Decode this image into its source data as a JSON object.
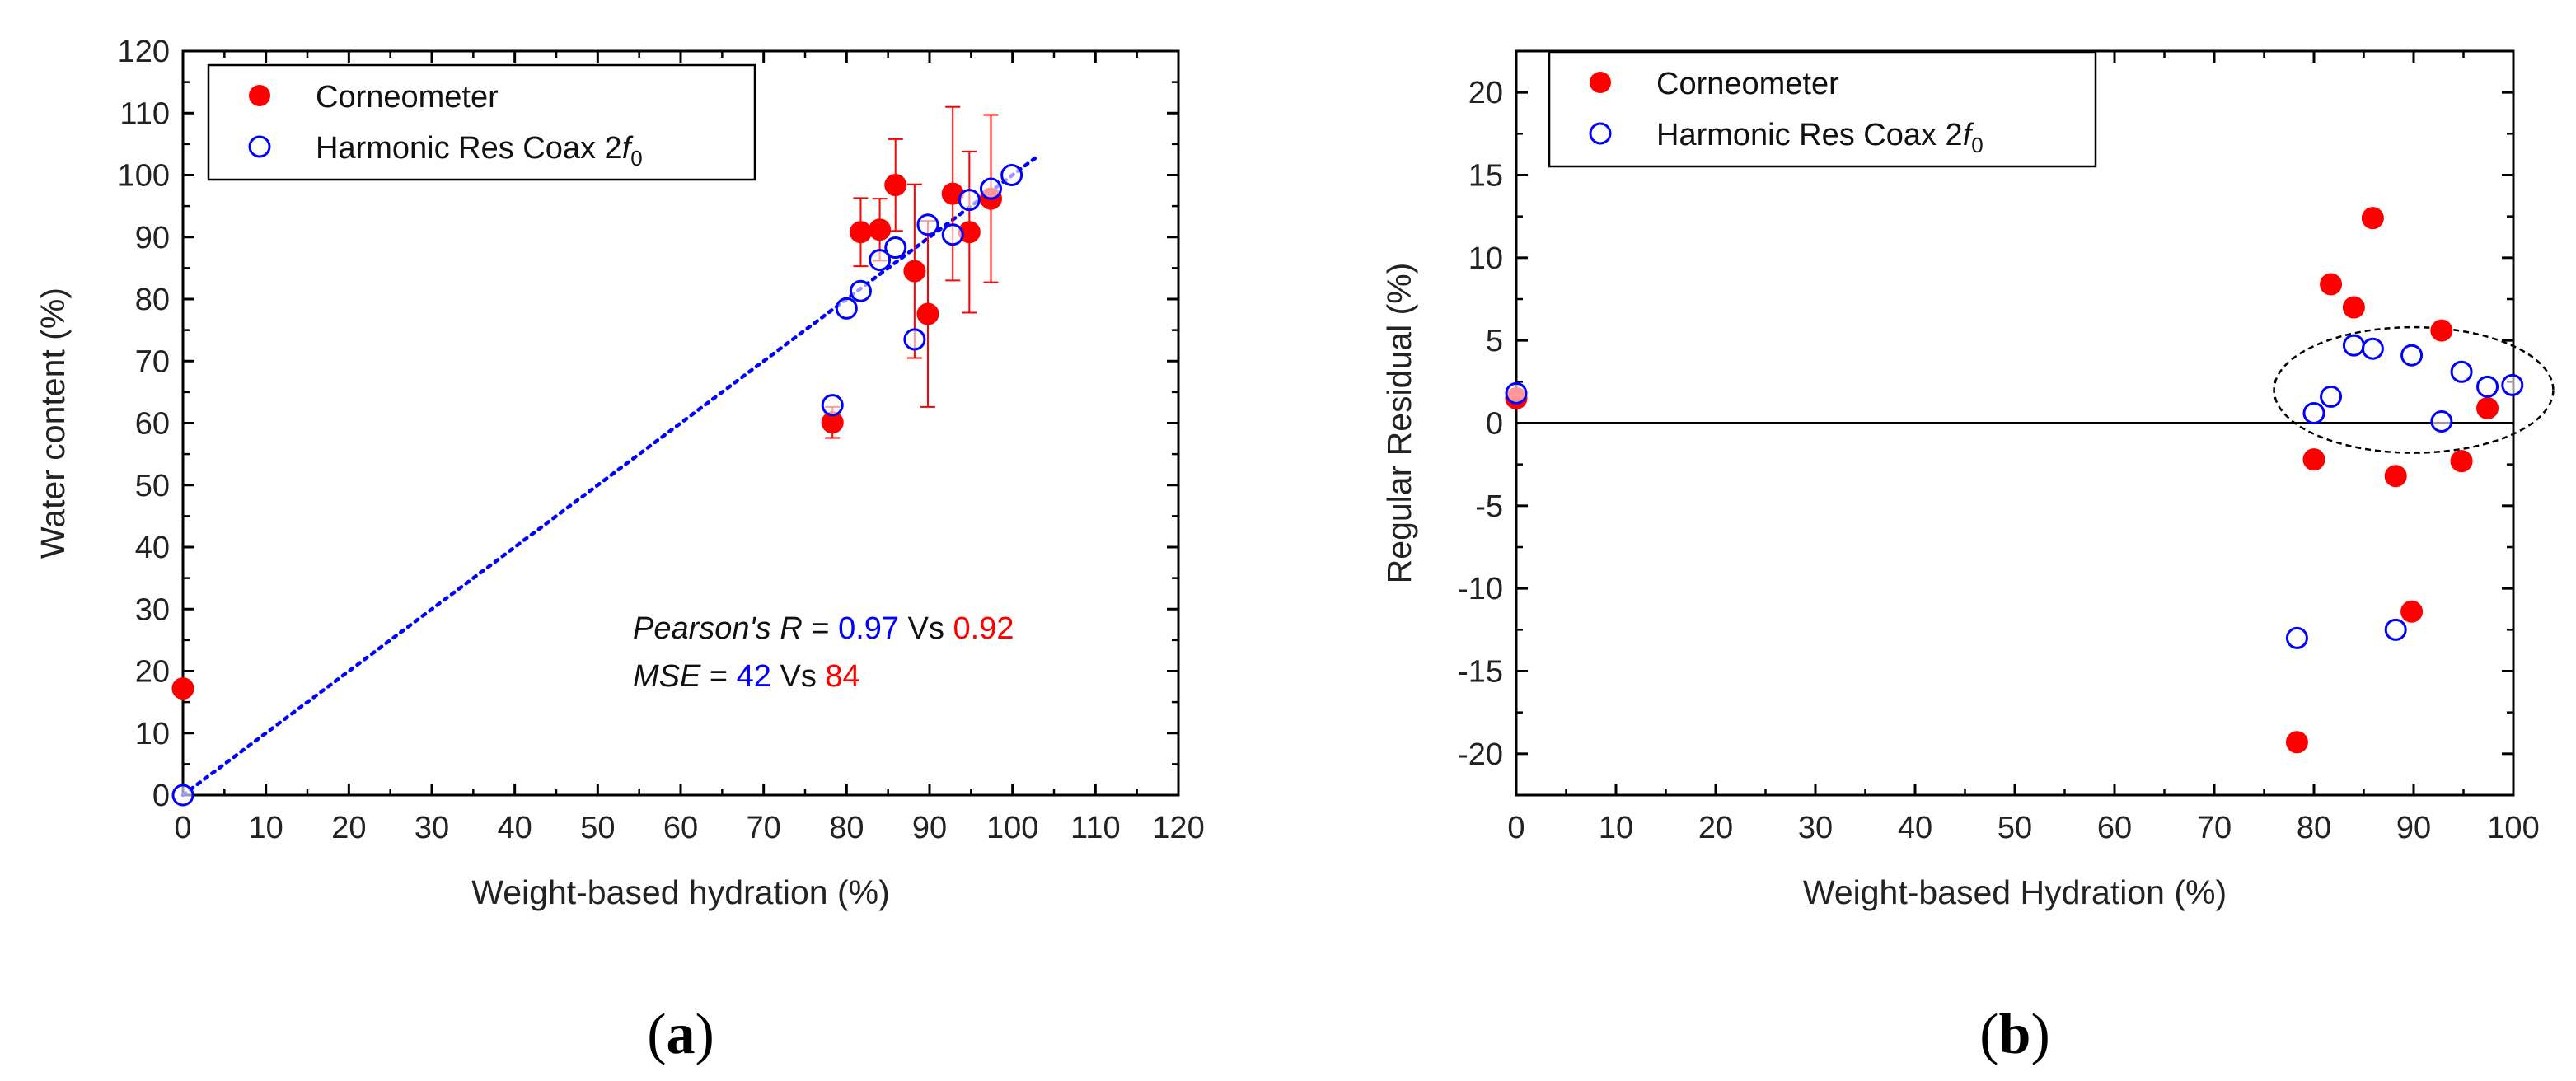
{
  "chart_data": [
    {
      "type": "scatter",
      "panel_label": {
        "open": "(",
        "letter": "a",
        "close": ")"
      },
      "xlabel": "Weight-based hydration (%)",
      "ylabel": "Water content (%)",
      "xlim": [
        0,
        120
      ],
      "ylim": [
        0,
        120
      ],
      "xticks": [
        "0",
        "10",
        "20",
        "30",
        "40",
        "50",
        "60",
        "70",
        "80",
        "90",
        "100",
        "110",
        "120"
      ],
      "yticks": [
        "0",
        "10",
        "20",
        "30",
        "40",
        "50",
        "60",
        "70",
        "80",
        "90",
        "100",
        "110",
        "120"
      ],
      "legend": {
        "position": "top-left",
        "entries": [
          {
            "name": "Corneometer",
            "marker": "filled-circle",
            "color": "#ff0000"
          },
          {
            "name": "Harmonic Res Coax 2",
            "italic_suffix": "f",
            "subscript": "0",
            "marker": "open-circle",
            "color": "#0000ff"
          }
        ]
      },
      "series": [
        {
          "name": "Corneometer",
          "color": "#ff0000",
          "points": [
            {
              "x": 0,
              "y": 17.2,
              "err": 0
            },
            {
              "x": 78.3,
              "y": 60.1,
              "err": 2.5
            },
            {
              "x": 81.7,
              "y": 90.8,
              "err": 5.5
            },
            {
              "x": 84.0,
              "y": 91.2,
              "err": 5.0
            },
            {
              "x": 85.9,
              "y": 98.4,
              "err": 7.4
            },
            {
              "x": 88.2,
              "y": 84.5,
              "err": 14.0
            },
            {
              "x": 89.8,
              "y": 77.6,
              "err": 15.0
            },
            {
              "x": 92.8,
              "y": 97.0,
              "err": 14.0
            },
            {
              "x": 94.8,
              "y": 90.8,
              "err": 13.0
            },
            {
              "x": 97.4,
              "y": 96.2,
              "err": 13.5
            }
          ]
        },
        {
          "name": "Harmonic Res Coax 2f0",
          "color": "#0000ff",
          "points": [
            {
              "x": 0,
              "y": 0
            },
            {
              "x": 78.3,
              "y": 62.9
            },
            {
              "x": 80.0,
              "y": 78.5
            },
            {
              "x": 81.7,
              "y": 81.3
            },
            {
              "x": 84.0,
              "y": 86.3
            },
            {
              "x": 85.9,
              "y": 88.3
            },
            {
              "x": 88.2,
              "y": 73.5
            },
            {
              "x": 89.8,
              "y": 92.0
            },
            {
              "x": 92.8,
              "y": 90.4
            },
            {
              "x": 94.8,
              "y": 96.0
            },
            {
              "x": 97.4,
              "y": 97.8
            },
            {
              "x": 99.9,
              "y": 100.0
            }
          ]
        }
      ],
      "fit_line": {
        "style": "dotted",
        "color": "#0000ff",
        "x": [
          0,
          103
        ],
        "y": [
          0,
          103
        ]
      },
      "annotations": [
        {
          "pre_italic": "Pearson's R",
          "eq": " = ",
          "val1": "0.97",
          "vs": " Vs ",
          "val2": "0.92"
        },
        {
          "pre_italic": "MSE",
          "eq": " = ",
          "val1": "42",
          "vs": " Vs ",
          "val2": "84"
        }
      ]
    },
    {
      "type": "scatter",
      "panel_label": {
        "open": "(",
        "letter": "b",
        "close": ")"
      },
      "xlabel": "Weight-based Hydration (%)",
      "ylabel": "Regular Residual (%)",
      "xlim": [
        0,
        100
      ],
      "ylim": [
        -22.5,
        22.5
      ],
      "xticks": [
        "0",
        "10",
        "20",
        "30",
        "40",
        "50",
        "60",
        "70",
        "80",
        "90",
        "100"
      ],
      "yticks": [
        "-20",
        "-15",
        "-10",
        "-5",
        "0",
        "5",
        "10",
        "15",
        "20"
      ],
      "legend": {
        "position": "top-left",
        "entries": [
          {
            "name": "Corneometer",
            "marker": "filled-circle",
            "color": "#ff0000"
          },
          {
            "name": "Harmonic Res Coax 2",
            "italic_suffix": "f",
            "subscript": "0",
            "marker": "open-circle",
            "color": "#0000ff"
          }
        ]
      },
      "zero_line": true,
      "ellipse_annotation": {
        "style": "dashed",
        "cx": 90,
        "cy": 2.0,
        "rx": 14,
        "ry": 3.8
      },
      "series": [
        {
          "name": "Corneometer",
          "color": "#ff0000",
          "points": [
            {
              "x": 0,
              "y": 1.5
            },
            {
              "x": 78.3,
              "y": -19.3
            },
            {
              "x": 80.0,
              "y": -2.2
            },
            {
              "x": 81.7,
              "y": 8.4
            },
            {
              "x": 84.0,
              "y": 7.0
            },
            {
              "x": 85.9,
              "y": 12.4
            },
            {
              "x": 88.2,
              "y": -3.2
            },
            {
              "x": 89.8,
              "y": -11.4
            },
            {
              "x": 92.8,
              "y": 5.6
            },
            {
              "x": 94.8,
              "y": -2.3
            },
            {
              "x": 97.4,
              "y": 0.9
            }
          ]
        },
        {
          "name": "Harmonic Res Coax 2f0",
          "color": "#0000ff",
          "points": [
            {
              "x": 0,
              "y": 1.8
            },
            {
              "x": 78.3,
              "y": -13.0
            },
            {
              "x": 80.0,
              "y": 0.6
            },
            {
              "x": 81.7,
              "y": 1.6
            },
            {
              "x": 84.0,
              "y": 4.7
            },
            {
              "x": 85.9,
              "y": 4.5
            },
            {
              "x": 88.2,
              "y": -12.5
            },
            {
              "x": 89.8,
              "y": 4.1
            },
            {
              "x": 92.8,
              "y": 0.1
            },
            {
              "x": 94.8,
              "y": 3.1
            },
            {
              "x": 97.4,
              "y": 2.2
            },
            {
              "x": 99.9,
              "y": 2.3
            }
          ]
        }
      ]
    }
  ]
}
